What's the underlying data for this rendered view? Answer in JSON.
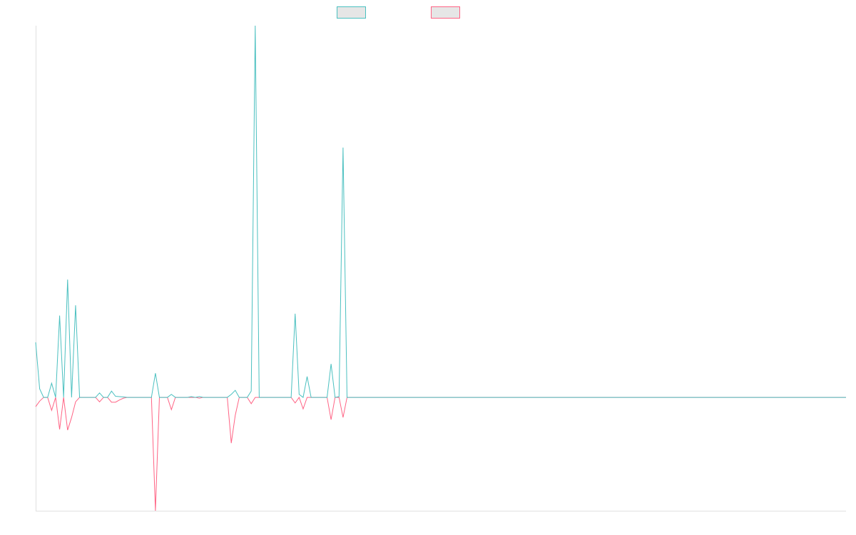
{
  "chart_data": {
    "type": "line",
    "ylim": [
      -30.5,
      100
    ],
    "legend": "top",
    "series": [
      {
        "color": "#4bc0c0",
        "values": [
          14.8,
          2.3,
          0,
          0,
          3.8,
          0,
          22,
          0,
          31.7,
          0,
          24.8,
          0,
          0,
          0,
          0,
          0,
          1.2,
          0,
          0,
          1.7,
          0.3,
          0.2,
          0.1,
          0,
          0,
          0,
          0,
          0,
          0,
          0,
          6.5,
          0,
          0,
          0,
          0.8,
          0,
          0,
          0,
          0,
          0.2,
          0,
          0.2,
          0,
          0,
          0,
          0,
          0,
          0,
          0,
          0.8,
          1.9,
          0,
          0,
          0,
          1.7,
          100,
          0,
          0,
          0,
          0,
          0,
          0,
          0,
          0,
          0,
          22.5,
          0.8,
          0,
          5.6,
          0,
          0,
          0,
          0,
          0,
          9,
          0,
          0.2,
          67.2,
          0,
          0,
          0,
          0,
          0,
          0,
          0,
          0,
          0,
          0,
          0,
          0,
          0,
          0,
          0,
          0,
          0,
          0,
          0,
          0,
          0,
          0,
          0,
          0,
          0,
          0,
          0,
          0,
          0,
          0,
          0,
          0,
          0,
          0,
          0,
          0,
          0,
          0,
          0,
          0,
          0,
          0,
          0,
          0,
          0,
          0,
          0,
          0,
          0,
          0,
          0,
          0,
          0,
          0,
          0,
          0,
          0,
          0,
          0,
          0,
          0,
          0,
          0,
          0,
          0,
          0,
          0,
          0,
          0,
          0,
          0,
          0,
          0,
          0,
          0,
          0,
          0,
          0,
          0,
          0,
          0,
          0,
          0,
          0,
          0,
          0,
          0,
          0,
          0,
          0,
          0,
          0,
          0,
          0,
          0,
          0,
          0,
          0,
          0,
          0,
          0,
          0,
          0,
          0,
          0,
          0,
          0,
          0,
          0,
          0,
          0,
          0,
          0,
          0,
          0,
          0,
          0,
          0,
          0,
          0,
          0,
          0,
          0,
          0,
          0,
          0
        ]
      },
      {
        "color": "#ff6384",
        "values": [
          -2.5,
          -1,
          0,
          0,
          -3.5,
          0,
          -8.6,
          0,
          -8.8,
          -5.4,
          -1.2,
          0,
          0,
          0,
          0,
          0,
          -1.2,
          0,
          0,
          -1.3,
          -1.3,
          -0.7,
          -0.2,
          0,
          0,
          0,
          0,
          0,
          0,
          0,
          -30.5,
          0,
          0,
          0,
          -3.3,
          0,
          0,
          0,
          0,
          0,
          0,
          -0.2,
          0,
          0,
          0,
          0,
          0,
          0,
          0,
          -12.3,
          -4.8,
          0,
          0,
          0,
          -1.7,
          0,
          0,
          0,
          0,
          0,
          0,
          0,
          0,
          0,
          0,
          -1.5,
          0,
          -3.1,
          0,
          0,
          0,
          0,
          0,
          0,
          -6,
          0,
          0,
          -5.4,
          0,
          0,
          0,
          0,
          0,
          0,
          0,
          0,
          0,
          0,
          0,
          0,
          0,
          0,
          0,
          0,
          0,
          0,
          0,
          0,
          0,
          0,
          0,
          0,
          0,
          0,
          0,
          0,
          0,
          0,
          0,
          0,
          0,
          0,
          0,
          0,
          0,
          0,
          0,
          0,
          0,
          0,
          0,
          0,
          0,
          0,
          0,
          0,
          0,
          0,
          0,
          0,
          0,
          0,
          0,
          0,
          0,
          0,
          0,
          0,
          0,
          0,
          0,
          0,
          0,
          0,
          0,
          0,
          0,
          0,
          0,
          0,
          0,
          0,
          0,
          0,
          0,
          0,
          0,
          0,
          0,
          0,
          0,
          0,
          0,
          0,
          0,
          0,
          0,
          0,
          0,
          0,
          0,
          0,
          0,
          0,
          0,
          0,
          0,
          0,
          0,
          0,
          0,
          0,
          0,
          0,
          0,
          0,
          0,
          0,
          0,
          0,
          0,
          0,
          0,
          0,
          0,
          0,
          0,
          0,
          0,
          0,
          0,
          0,
          0,
          0
        ]
      }
    ]
  }
}
